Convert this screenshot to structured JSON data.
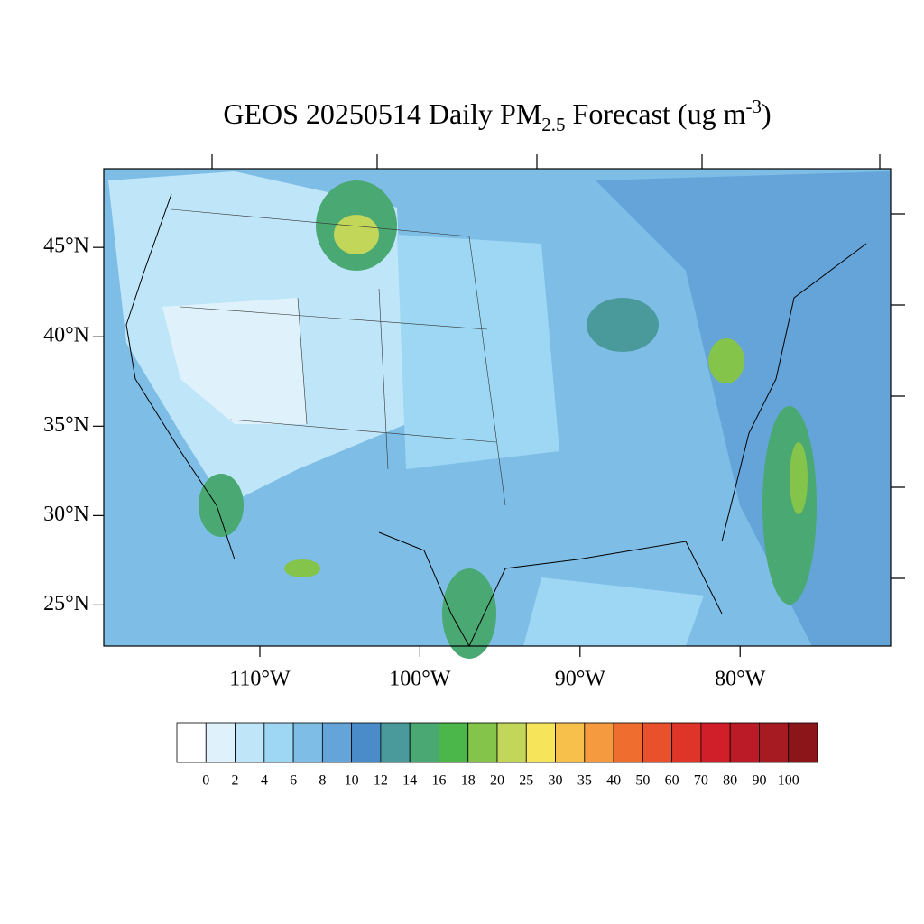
{
  "title": {
    "main": "GEOS 20250514 Daily PM",
    "sub": "2.5",
    "rest": " Forecast (ug m",
    "sup": "-3",
    "end": ")"
  },
  "map": {
    "xlim": [
      -119.75,
      -70.6
    ],
    "ylim": [
      22.7,
      49.4
    ],
    "lat_ticks": [
      {
        "value": 45,
        "label": "45°N"
      },
      {
        "value": 40,
        "label": "40°N"
      },
      {
        "value": 35,
        "label": "35°N"
      },
      {
        "value": 30,
        "label": "30°N"
      },
      {
        "value": 25,
        "label": "25°N"
      }
    ],
    "lon_ticks": [
      {
        "value": -110,
        "label": "110°W"
      },
      {
        "value": -100,
        "label": "100°W"
      },
      {
        "value": -90,
        "label": "90°W"
      },
      {
        "value": -80,
        "label": "80°W"
      }
    ]
  },
  "colorbar": {
    "labels": [
      0,
      2,
      4,
      6,
      8,
      10,
      12,
      14,
      16,
      18,
      20,
      25,
      30,
      35,
      40,
      50,
      60,
      70,
      80,
      90,
      100
    ],
    "colors": [
      "#ffffff",
      "#dff2fb",
      "#bfe6f8",
      "#9dd7f4",
      "#7ebde6",
      "#64a4d8",
      "#4a8cc9",
      "#4a9a9c",
      "#4aa873",
      "#4bb64a",
      "#84c44b",
      "#c2d65a",
      "#f6e55a",
      "#f7c04a",
      "#f59a3e",
      "#ef6d2f",
      "#e8512b",
      "#df3428",
      "#d11f2a",
      "#bb1b26",
      "#a61a22",
      "#8b1519"
    ]
  }
}
